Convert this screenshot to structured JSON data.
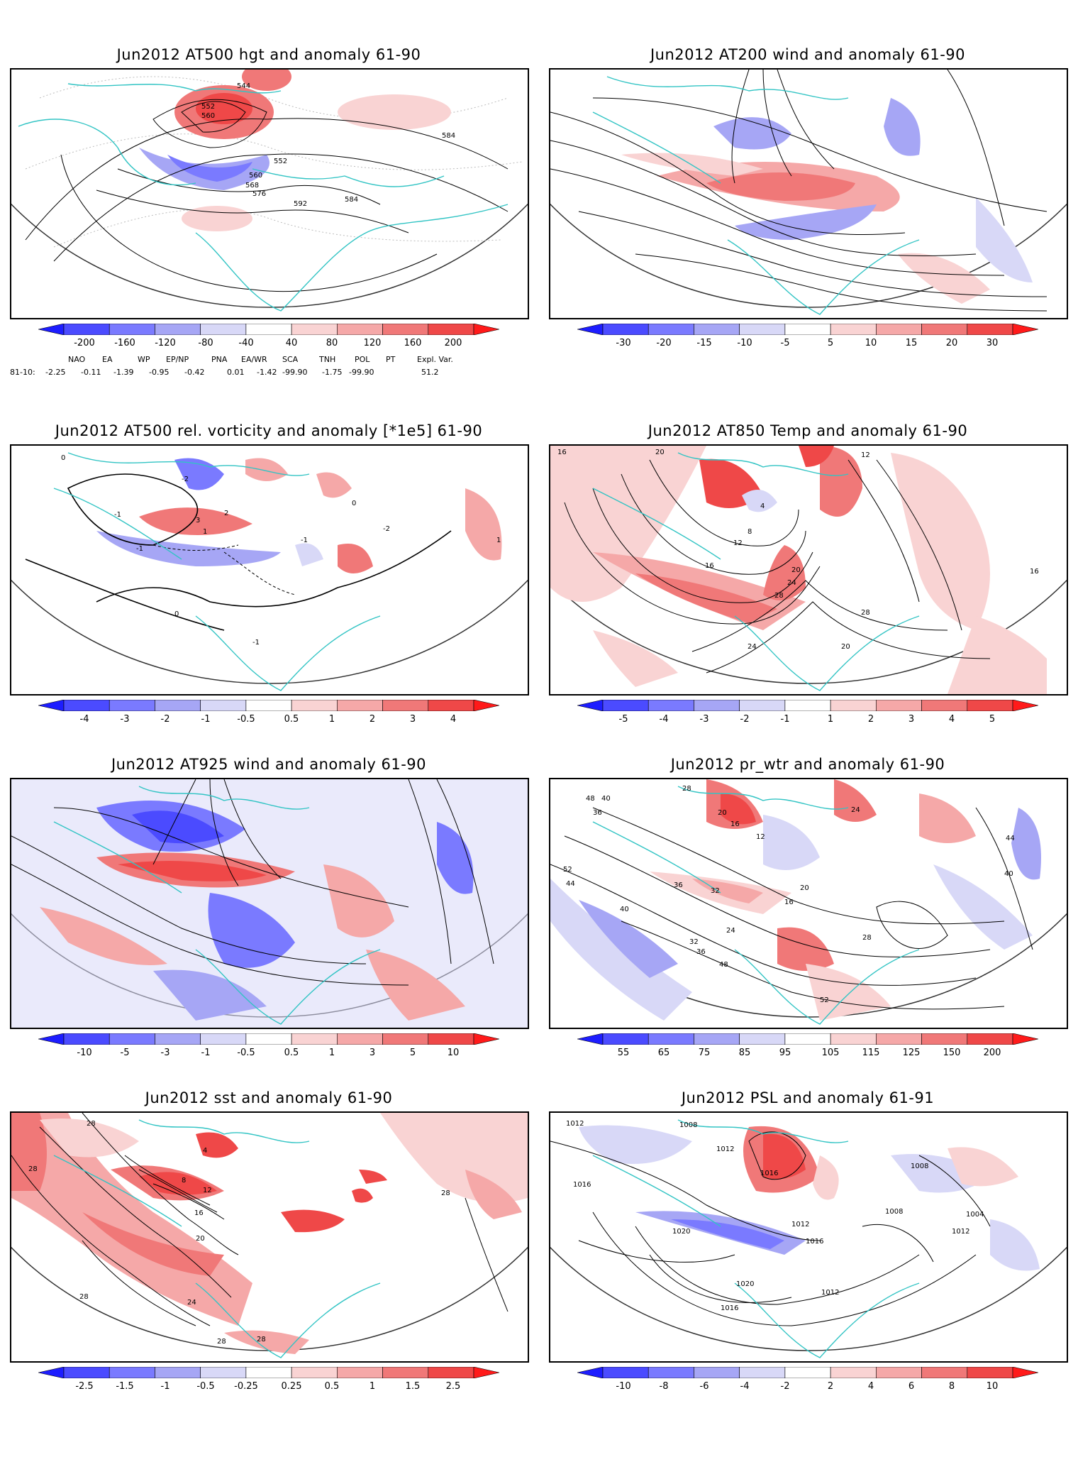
{
  "panels": [
    {
      "title": "Jun2012 AT500 hgt and anomaly 61-90",
      "ticks": [
        "-200",
        "-160",
        "-120",
        "-80",
        "-40",
        "40",
        "80",
        "120",
        "160",
        "200"
      ],
      "labels": [
        "544",
        "552",
        "560",
        "592",
        "568",
        "560",
        "576",
        "584",
        "584",
        "552"
      ],
      "teleconnections": {
        "headers": [
          "NAO",
          "EA",
          "WP",
          "EP/NP",
          "PNA",
          "EA/WR",
          "SCA",
          "TNH",
          "POL",
          "PT",
          "Expl. Var."
        ],
        "row_label": "81-10:",
        "values": [
          "-2.25",
          "-0.11",
          "-1.39",
          "-0.95",
          "-0.42",
          "0.01",
          "-1.42",
          "-99.90",
          "-1.75",
          "-99.90",
          "51.2"
        ]
      }
    },
    {
      "title": "Jun2012 AT200 wind and anomaly 61-90",
      "ticks": [
        "-30",
        "-20",
        "-15",
        "-10",
        "-5",
        "5",
        "10",
        "15",
        "20",
        "30"
      ],
      "labels": []
    },
    {
      "title": "Jun2012 AT500 rel. vorticity and anomaly [*1e5] 61-90",
      "ticks": [
        "-4",
        "-3",
        "-2",
        "-1",
        "-0.5",
        "0.5",
        "1",
        "2",
        "3",
        "4"
      ],
      "labels": [
        "0",
        "-1",
        "-2",
        "3",
        "1",
        "-1",
        "2",
        "-2",
        "0",
        "-1",
        "1",
        "0",
        "-1"
      ]
    },
    {
      "title": "Jun2012 AT850 Temp and anomaly 61-90",
      "ticks": [
        "-5",
        "-4",
        "-3",
        "-2",
        "-1",
        "1",
        "2",
        "3",
        "4",
        "5"
      ],
      "labels": [
        "16",
        "20",
        "12",
        "4",
        "8",
        "12",
        "16",
        "20",
        "24",
        "28",
        "24",
        "20",
        "28",
        "16"
      ]
    },
    {
      "title": "Jun2012 AT925 wind and anomaly 61-90",
      "ticks": [
        "-10",
        "-5",
        "-3",
        "-1",
        "-0.5",
        "0.5",
        "1",
        "3",
        "5",
        "10"
      ],
      "labels": []
    },
    {
      "title": "Jun2012 pr_wtr and anomaly 61-90",
      "ticks": [
        "55",
        "65",
        "75",
        "85",
        "95",
        "105",
        "115",
        "125",
        "150",
        "200"
      ],
      "labels": [
        "48",
        "40",
        "36",
        "52",
        "44",
        "28",
        "16",
        "20",
        "24",
        "12",
        "36",
        "32",
        "40",
        "20",
        "16",
        "44",
        "40",
        "32",
        "36",
        "24",
        "48",
        "52",
        "28"
      ]
    },
    {
      "title": "Jun2012 sst and anomaly 61-90",
      "ticks": [
        "-2.5",
        "-1.5",
        "-1",
        "-0.5",
        "-0.25",
        "0.25",
        "0.5",
        "1",
        "1.5",
        "2.5"
      ],
      "labels": [
        "28",
        "28",
        "12",
        "16",
        "20",
        "24",
        "28",
        "28",
        "28",
        "28",
        "8",
        "4"
      ]
    },
    {
      "title": "Jun2012 PSL and anomaly 61-91",
      "ticks": [
        "-10",
        "-8",
        "-6",
        "-4",
        "-2",
        "2",
        "4",
        "6",
        "8",
        "10"
      ],
      "labels": [
        "1012",
        "1008",
        "1012",
        "1016",
        "1016",
        "1012",
        "1020",
        "1020",
        "1016",
        "1012",
        "1008",
        "1004",
        "1012",
        "1008",
        "1016"
      ]
    }
  ],
  "palette": [
    "#1d1dff",
    "#4b4bff",
    "#7a7aff",
    "#a6a6f5",
    "#d8d8f7",
    "#ffffff",
    "#f9d3d3",
    "#f5a8a8",
    "#f07878",
    "#ef4848",
    "#ff1a1a"
  ]
}
